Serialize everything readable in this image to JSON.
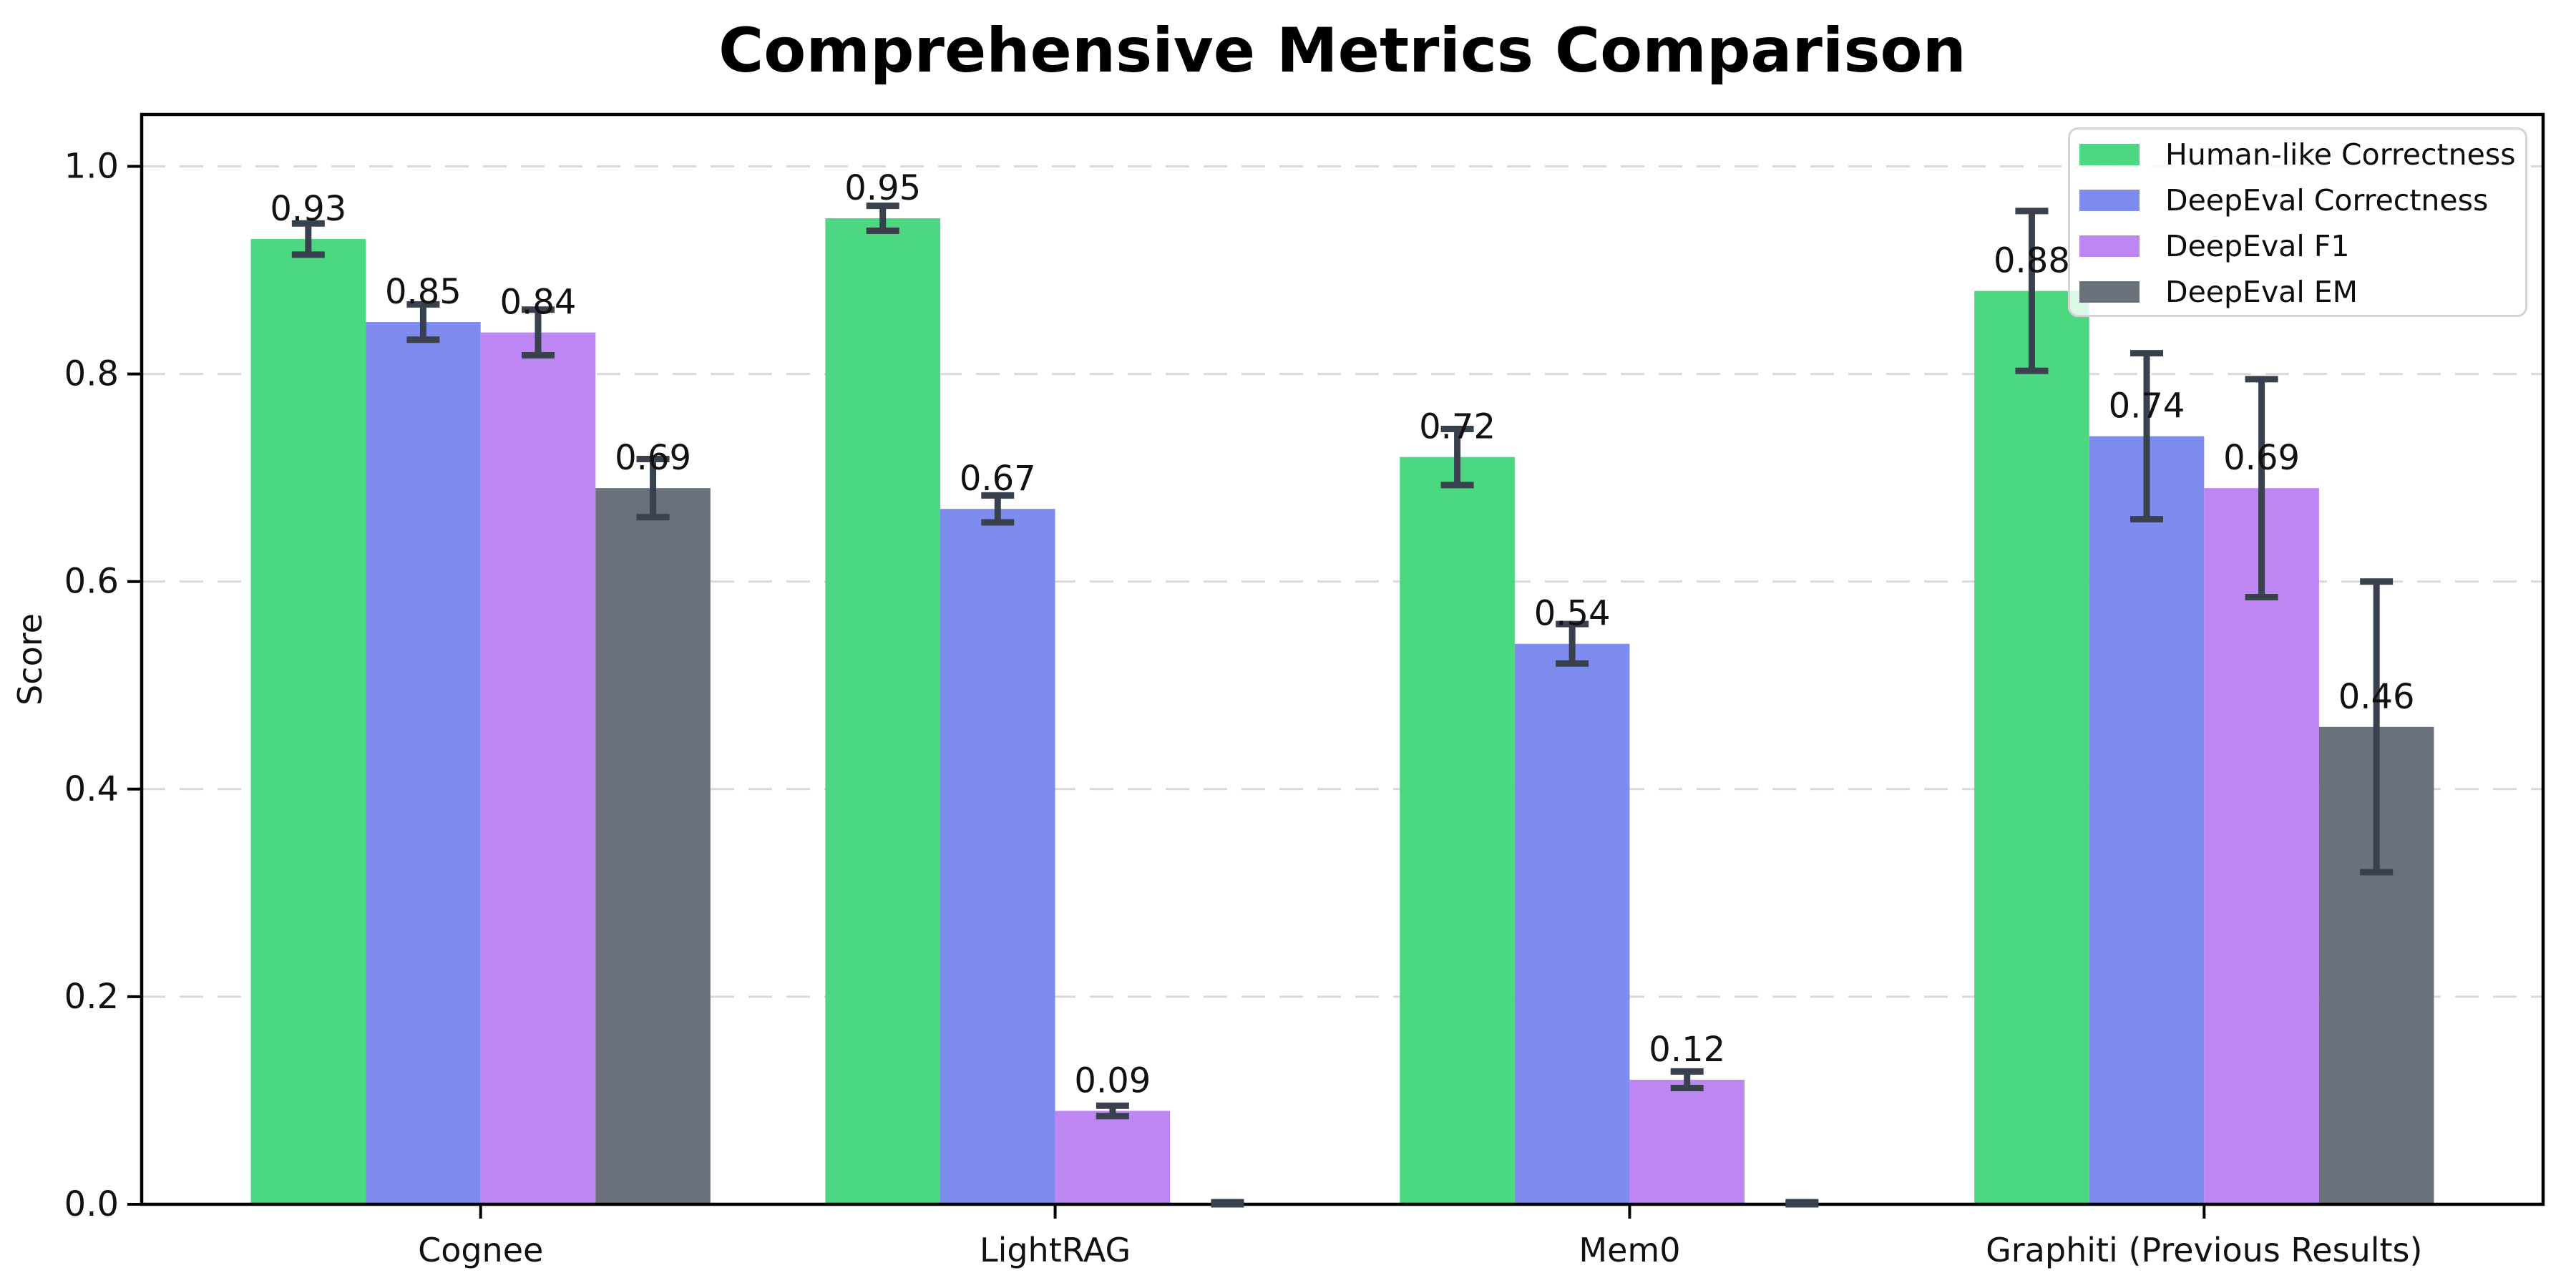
{
  "page": {
    "background": "#ffffff"
  },
  "chart_data": {
    "type": "bar",
    "title": "Comprehensive Metrics Comparison",
    "ylabel": "Score",
    "xlabel": "",
    "ylim": [
      0,
      1.05
    ],
    "yticks": [
      0,
      0.2,
      0.4,
      0.6,
      0.8,
      1.0
    ],
    "ytick_labels": [
      "0.0",
      "0.2",
      "0.4",
      "0.6",
      "0.8",
      "1.0"
    ],
    "grid": {
      "axis": "y",
      "style": "dashed",
      "color": "#d9d9d9"
    },
    "legend": {
      "position": "upper right",
      "border_color": "#d4d4d4",
      "background": "rgba(255,255,255,0.8)"
    },
    "categories": [
      "Cognee",
      "LightRAG",
      "Mem0",
      "Graphiti (Previous Results)"
    ],
    "series": [
      {
        "name": "Human-like Correctness",
        "color": "#4bd880",
        "values": [
          0.93,
          0.95,
          0.72,
          0.88
        ],
        "errors": [
          0.015,
          0.012,
          0.027,
          0.077
        ],
        "labels": [
          "0.93",
          "0.95",
          "0.72",
          "0.88"
        ]
      },
      {
        "name": "DeepEval Correctness",
        "color": "#7e8bef",
        "values": [
          0.85,
          0.67,
          0.54,
          0.74
        ],
        "errors": [
          0.017,
          0.013,
          0.019,
          0.08
        ],
        "labels": [
          "0.85",
          "0.67",
          "0.54",
          "0.74"
        ]
      },
      {
        "name": "DeepEval F1",
        "color": "#bd86f3",
        "values": [
          0.84,
          0.09,
          0.12,
          0.69
        ],
        "errors": [
          0.022,
          0.005,
          0.008,
          0.105
        ],
        "labels": [
          "0.84",
          "0.09",
          "0.12",
          "0.69"
        ]
      },
      {
        "name": "DeepEval EM",
        "color": "#6a717b",
        "values": [
          0.69,
          0.0,
          0.0,
          0.46
        ],
        "errors": [
          0.028,
          0.002,
          0.002,
          0.14
        ],
        "labels": [
          "0.69",
          "",
          "",
          "0.46"
        ]
      }
    ],
    "error_bar_color": "#39414f",
    "axis_color": "#000000",
    "text_color": "#111111"
  }
}
